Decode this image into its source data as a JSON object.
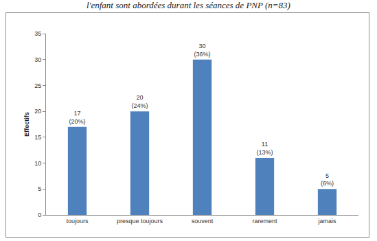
{
  "chart_data": {
    "type": "bar",
    "title": "l'enfant sont abordées durant les séances de PNP (n=83)",
    "y_label": "Effectifs",
    "categories": [
      "toujours",
      "presque toujours",
      "souvent",
      "rarement",
      "jamais"
    ],
    "values": [
      17,
      20,
      30,
      11,
      5
    ],
    "value_labels": [
      "17\n(20%)",
      "20\n(24%)",
      "30\n(36%)",
      "11\n(13%)",
      "5\n(6%)"
    ],
    "data_labels": true,
    "color": "#4f81bd",
    "ylim": [
      0,
      35
    ],
    "yticks": [
      0,
      5,
      10,
      15,
      20,
      25,
      30,
      35
    ],
    "grid": false
  }
}
